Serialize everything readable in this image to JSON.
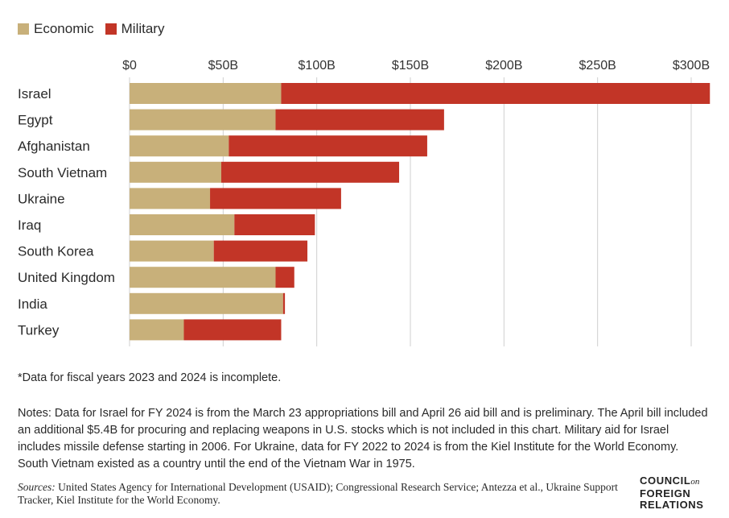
{
  "legend": {
    "economic_label": "Economic",
    "military_label": "Military"
  },
  "colors": {
    "economic": "#c8b07a",
    "military": "#c23527",
    "grid": "#cfcfcf"
  },
  "chart_data": {
    "type": "bar",
    "orientation": "horizontal",
    "stacked": true,
    "categories": [
      "Israel",
      "Egypt",
      "Afghanistan",
      "South Vietnam",
      "Ukraine",
      "Iraq",
      "South Korea",
      "United Kingdom",
      "India",
      "Turkey"
    ],
    "series": [
      {
        "name": "Economic",
        "values": [
          81,
          78,
          53,
          49,
          43,
          56,
          45,
          78,
          82,
          29
        ]
      },
      {
        "name": "Military",
        "values": [
          229,
          90,
          106,
          95,
          70,
          43,
          50,
          10,
          1,
          52
        ]
      }
    ],
    "xlim": [
      0,
      310
    ],
    "x_ticks": [
      0,
      50,
      100,
      150,
      200,
      250,
      300
    ],
    "x_tick_labels": [
      "$0",
      "$50B",
      "$100B",
      "$150B",
      "$200B",
      "$250B",
      "$300B"
    ],
    "legend_position": "top-left",
    "grid": true
  },
  "footnote": "*Data for fiscal years 2023 and 2024 is incomplete.",
  "notes": "Notes: Data for Israel for FY 2024 is from the March 23 appropriations bill and April 26 aid bill and is preliminary. The April bill included an additional $5.4B for procuring and replacing weapons in U.S. stocks which is not included in this chart. Military aid for Israel includes missile defense starting in 2006. For Ukraine, data for FY 2022 to 2024 is from the Kiel Institute for the World Economy. South Vietnam existed as a country until the end of the Vietnam War in 1975.",
  "sources": {
    "label": "Sources:",
    "text": "United States Agency for International Development (USAID); Congressional Research Service; Antezza et al., Ukraine Support Tracker, Kiel Institute for the World Economy."
  },
  "logo": {
    "line1": "COUNCIL",
    "on": "on",
    "line2": "FOREIGN",
    "line3": "RELATIONS"
  }
}
